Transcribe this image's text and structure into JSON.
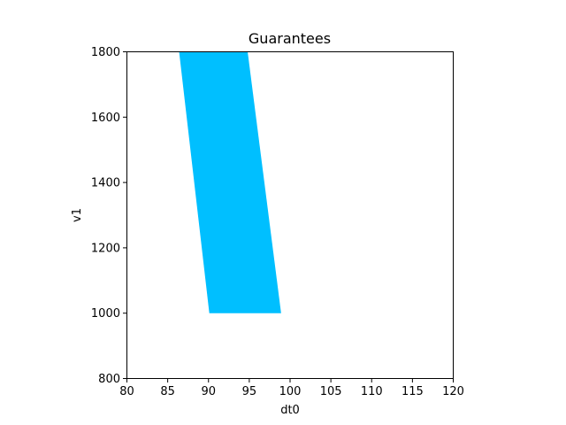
{
  "chart_data": {
    "type": "area",
    "title": "Guarantees",
    "xlabel": "dt0",
    "ylabel": "v1",
    "xlim": [
      80,
      120
    ],
    "ylim": [
      800,
      1800
    ],
    "xticks": [
      80,
      85,
      90,
      95,
      100,
      105,
      110,
      115,
      120
    ],
    "yticks": [
      800,
      1000,
      1200,
      1400,
      1600,
      1800
    ],
    "grid": false,
    "series": [
      {
        "fill_color": "#00bfff",
        "polygon": [
          {
            "x": 90.1,
            "y": 1000
          },
          {
            "x": 98.9,
            "y": 1000
          },
          {
            "x": 94.8,
            "y": 1800
          },
          {
            "x": 86.4,
            "y": 1800
          }
        ]
      }
    ]
  }
}
